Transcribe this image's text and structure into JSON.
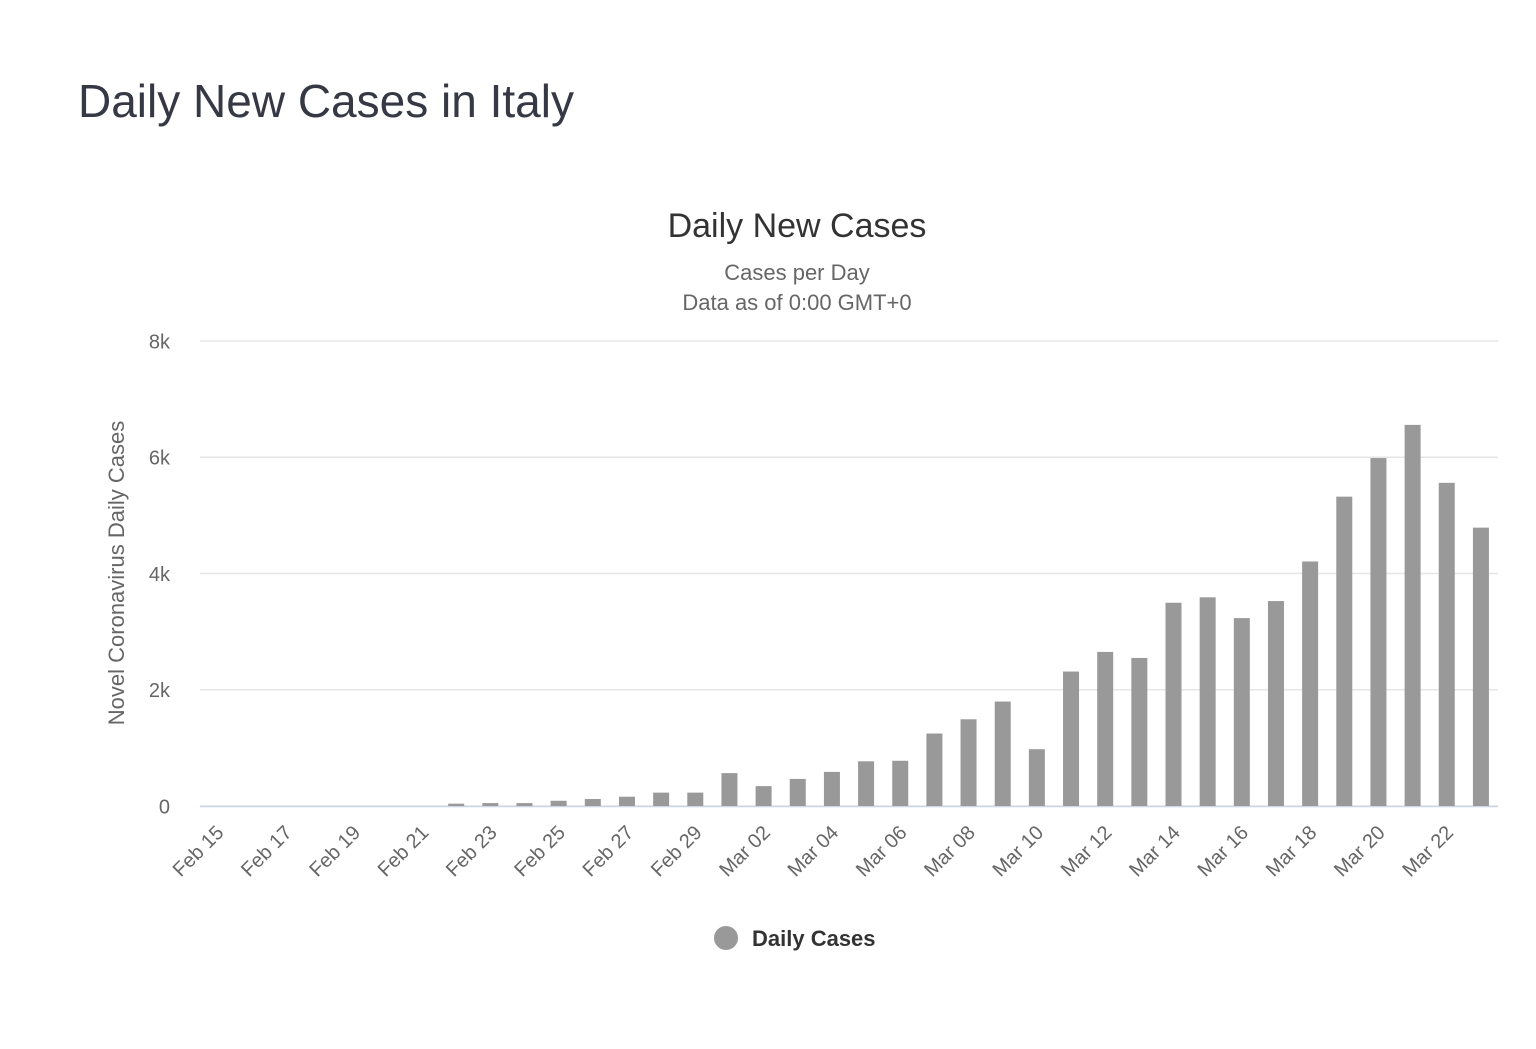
{
  "page_title": "Daily New Cases in Italy",
  "chart_data": {
    "type": "bar",
    "title": "Daily New Cases",
    "subtitle": [
      "Cases per Day",
      "Data as of 0:00 GMT+0"
    ],
    "y_label": "Novel Coronavirus Daily Cases",
    "categories": [
      "Feb 15",
      null,
      "Feb 17",
      null,
      "Feb 19",
      null,
      "Feb 21",
      null,
      "Feb 23",
      null,
      "Feb 25",
      null,
      "Feb 27",
      null,
      "Feb 29",
      null,
      "Mar 02",
      null,
      "Mar 04",
      null,
      "Mar 06",
      null,
      "Mar 08",
      null,
      "Mar 10",
      null,
      "Mar 12",
      null,
      "Mar 14",
      null,
      "Mar 16",
      null,
      "Mar 18",
      null,
      "Mar 20",
      null,
      "Mar 22",
      null
    ],
    "series": [
      {
        "name": "Daily Cases",
        "color": "#999999",
        "values": [
          0,
          0,
          0,
          0,
          0,
          0,
          0,
          40,
          50,
          50,
          90,
          120,
          160,
          230,
          230,
          566,
          342,
          466,
          587,
          769,
          778,
          1247,
          1492,
          1797,
          977,
          2313,
          2651,
          2547,
          3497,
          3590,
          3233,
          3526,
          4207,
          5322,
          5986,
          6557,
          5560,
          4789
        ]
      }
    ],
    "ylim": [
      0,
      8000
    ],
    "yticks": [
      0,
      {
        "value": 2000,
        "label": "2k"
      },
      {
        "value": 4000,
        "label": "4k"
      },
      {
        "value": 6000,
        "label": "6k"
      },
      {
        "value": 8000,
        "label": "8k"
      }
    ],
    "grid": true,
    "legend": "bottom"
  }
}
